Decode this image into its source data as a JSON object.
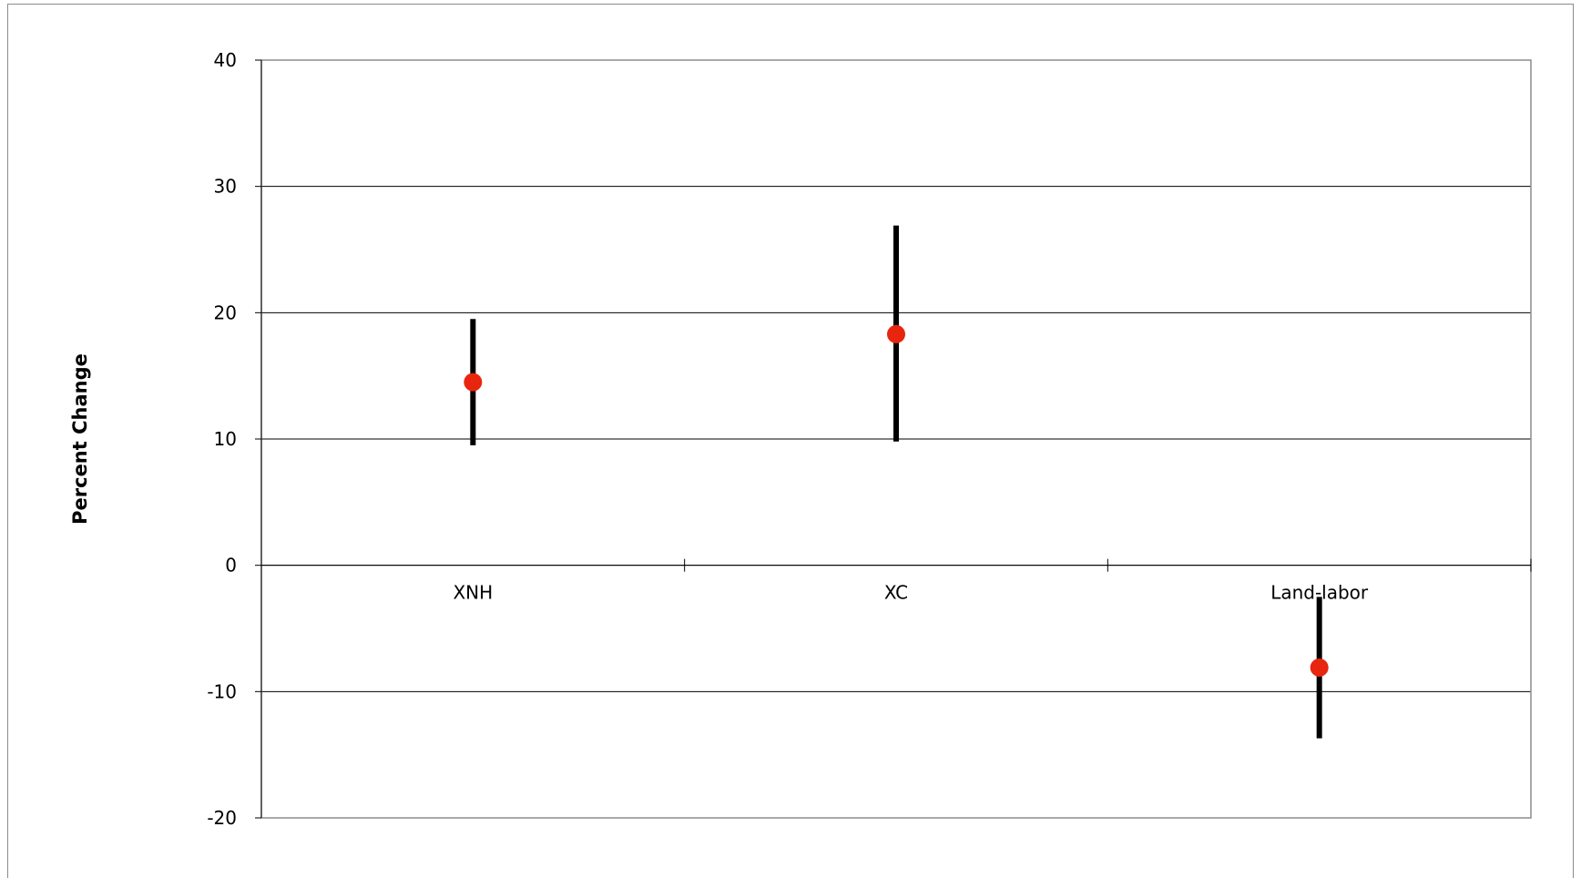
{
  "chart_data": {
    "type": "scatter",
    "title": "",
    "xlabel": "",
    "ylabel": "Percent Change",
    "categories": [
      "XNH",
      "XC",
      "Land-labor"
    ],
    "ylim": [
      -20,
      40
    ],
    "yticks": [
      -20,
      -10,
      0,
      10,
      20,
      30,
      40
    ],
    "grid": true,
    "series": [
      {
        "values": [
          14.5,
          18.3,
          -8.1
        ],
        "error_low": [
          9.5,
          9.8,
          -13.7
        ],
        "error_high": [
          19.5,
          26.9,
          -2.5
        ]
      }
    ],
    "colors": {
      "point": "#e8250e",
      "error_bar": "#000000",
      "gridline": "#000000",
      "plot_border": "#8c8c8c"
    }
  }
}
